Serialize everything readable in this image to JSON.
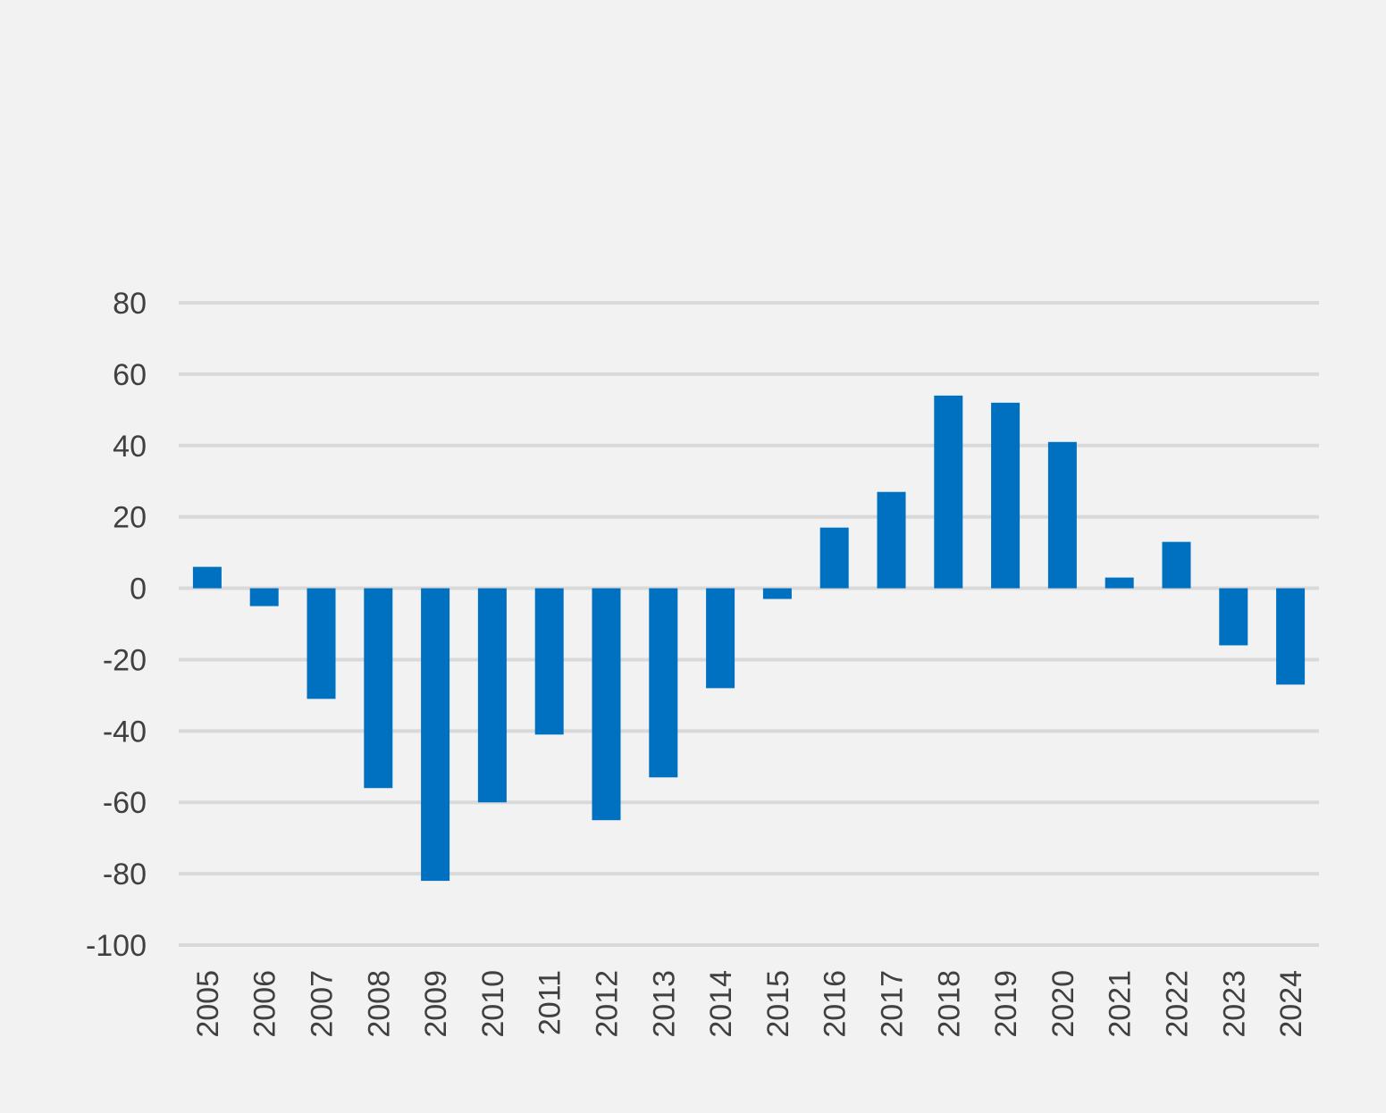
{
  "chart_data": {
    "type": "bar",
    "title": "",
    "xlabel": "",
    "ylabel": "",
    "categories": [
      "2005",
      "2006",
      "2007",
      "2008",
      "2009",
      "2010",
      "2011",
      "2012",
      "2013",
      "2014",
      "2015",
      "2016",
      "2017",
      "2018",
      "2019",
      "2020",
      "2021",
      "2022",
      "2023",
      "2024"
    ],
    "values": [
      6,
      -5,
      -31,
      -56,
      -82,
      -60,
      -41,
      -65,
      -53,
      -28,
      -3,
      17,
      27,
      54,
      52,
      41,
      3,
      13,
      -16,
      -27
    ],
    "ylim": [
      -100,
      80
    ],
    "yticks": [
      80,
      60,
      40,
      20,
      0,
      -20,
      -40,
      -60,
      -80,
      -100
    ],
    "ytick_labels": [
      "80",
      "60",
      "40",
      "20",
      "0",
      "-20",
      "-40",
      "-60",
      "-80",
      "-100"
    ],
    "grid": true,
    "legend": "none",
    "colors": {
      "bar": "#0070c0",
      "grid": "#d9d9d9",
      "background": "#f2f2f2",
      "text": "#404040"
    }
  }
}
